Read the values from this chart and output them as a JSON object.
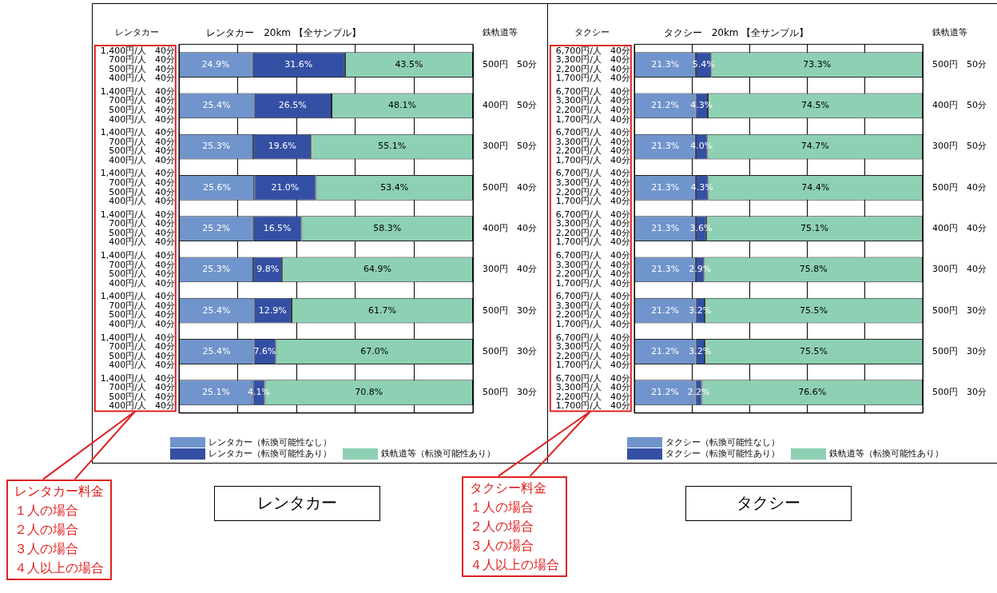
{
  "chart_data": [
    {
      "type": "bar",
      "title": "レンタカー　20km 【全サンプル】",
      "orientation": "horizontal",
      "stacked": true,
      "legend": "bottom",
      "grid": "x",
      "tick_labels": "y",
      "categories": [
        "1,400円/人　40分\n700円/人　40分\n500円/人　40分\n400円/人　40分",
        "1,400円/人　40分\n700円/人　40分\n500円/人　40分\n400円/人　40分",
        "1,400円/人　40分\n700円/人　40分\n500円/人　40分\n400円/人　40分",
        "1,400円/人　40分\n700円/人　40分\n500円/人　40分\n400円/人　40分",
        "1,400円/人　40分\n700円/人　40分\n500円/人　40分\n400円/人　40分",
        "1,400円/人　40分\n700円/人　40分\n500円/人　40分\n400円/人　40分",
        "1,400円/人　40分\n700円/人　40分\n500円/人　40分\n400円/人　40分",
        "1,400円/人　40分\n700円/人　40分\n500円/人　40分\n400円/人　40分",
        "1,400円/人　40分\n700円/人　40分\n500円/人　40分\n400円/人　40分"
      ],
      "y2_categories": [
        "500円　50分",
        "400円　50分",
        "300円　50分",
        "500円　40分",
        "400円　40分",
        "300円　40分",
        "500円　30分",
        "500円　30分",
        "500円　30分"
      ],
      "xlim": [
        0,
        100
      ],
      "series": [
        {
          "name": "レンタカー（転換可能性なし）",
          "color": "#7094cc",
          "values": [
            24.9,
            25.4,
            25.3,
            25.6,
            25.2,
            25.3,
            25.4,
            25.4,
            25.1
          ],
          "value_labels": [
            "24.9%",
            "25.4%",
            "25.3%",
            "25.6%",
            "25.2%",
            "25.3%",
            "25.4%",
            "25.4%",
            "25.1%"
          ]
        },
        {
          "name": "レンタカー（転換可能性あり）",
          "color": "#3350a4",
          "values": [
            31.6,
            26.5,
            19.6,
            21.0,
            16.5,
            9.8,
            12.9,
            7.6,
            4.1
          ],
          "value_labels": [
            "31.6%",
            "26.5%",
            "19.6%",
            "21.0%",
            "16.5%",
            "9.8%",
            "12.9%",
            "7.6%",
            "4.1%"
          ]
        },
        {
          "name": "鉄軌道等（転換可能性あり）",
          "color": "#8dd0b4",
          "values": [
            43.5,
            48.1,
            55.1,
            53.4,
            58.3,
            64.9,
            61.7,
            67.0,
            70.8
          ],
          "value_labels": [
            "43.5%",
            "48.1%",
            "55.1%",
            "53.4%",
            "58.3%",
            "64.9%",
            "61.7%",
            "67.0%",
            "70.8%"
          ]
        }
      ],
      "annotations": [
        "レンタカー",
        "鉄軌道等",
        "レンタカー料金",
        "１人の場合",
        "２人の場合",
        "３人の場合",
        "４人以上の場合",
        "レンタカー"
      ]
    },
    {
      "type": "bar",
      "title": "タクシー　20km 【全サンプル】",
      "orientation": "horizontal",
      "stacked": true,
      "legend": "bottom",
      "grid": "x",
      "tick_labels": "y",
      "categories": [
        "6,700円/人　40分\n3,300円/人　40分\n2,200円/人　40分\n1,700円/人　40分",
        "6,700円/人　40分\n3,300円/人　40分\n2,200円/人　40分\n1,700円/人　40分",
        "6,700円/人　40分\n3,300円/人　40分\n2,200円/人　40分\n1,700円/人　40分",
        "6,700円/人　40分\n3,300円/人　40分\n2,200円/人　40分\n1,700円/人　40分",
        "6,700円/人　40分\n3,300円/人　40分\n2,200円/人　40分\n1,700円/人　40分",
        "6,700円/人　40分\n3,300円/人　40分\n2,200円/人　40分\n1,700円/人　40分",
        "6,700円/人　40分\n3,300円/人　40分\n2,200円/人　40分\n1,700円/人　40分",
        "6,700円/人　40分\n3,300円/人　40分\n2,200円/人　40分\n1,700円/人　40分",
        "6,700円/人　40分\n3,300円/人　40分\n2,200円/人　40分\n1,700円/人　40分"
      ],
      "y2_categories": [
        "500円　50分",
        "400円　50分",
        "300円　50分",
        "500円　40分",
        "400円　40分",
        "300円　40分",
        "500円　30分",
        "500円　30分",
        "500円　30分"
      ],
      "xlim": [
        0,
        100
      ],
      "series": [
        {
          "name": "タクシー（転換可能性なし）",
          "color": "#7094cc",
          "values": [
            21.3,
            21.2,
            21.3,
            21.3,
            21.3,
            21.3,
            21.2,
            21.2,
            21.2
          ],
          "value_labels": [
            "21.3%",
            "21.2%",
            "21.3%",
            "21.3%",
            "21.3%",
            "21.3%",
            "21.2%",
            "21.2%",
            "21.2%"
          ]
        },
        {
          "name": "タクシー（転換可能性あり）",
          "color": "#3350a4",
          "values": [
            5.4,
            4.3,
            4.0,
            4.3,
            3.6,
            2.9,
            3.2,
            3.2,
            2.2
          ],
          "value_labels": [
            "5.4%",
            "4.3%",
            "4.0%",
            "4.3%",
            "3.6%",
            "2.9%",
            "3.2%",
            "3.2%",
            "2.2%"
          ]
        },
        {
          "name": "鉄軌道等（転換可能性あり）",
          "color": "#8dd0b4",
          "values": [
            73.3,
            74.5,
            74.7,
            74.4,
            75.1,
            75.8,
            75.5,
            75.5,
            76.6
          ],
          "value_labels": [
            "73.3%",
            "74.5%",
            "74.7%",
            "74.4%",
            "75.1%",
            "75.8%",
            "75.5%",
            "75.5%",
            "76.6%"
          ]
        }
      ],
      "annotations": [
        "タクシー",
        "鉄軌道等",
        "タクシー料金",
        "１人の場合",
        "２人の場合",
        "３人の場合",
        "４人以上の場合",
        "タクシー"
      ]
    }
  ]
}
